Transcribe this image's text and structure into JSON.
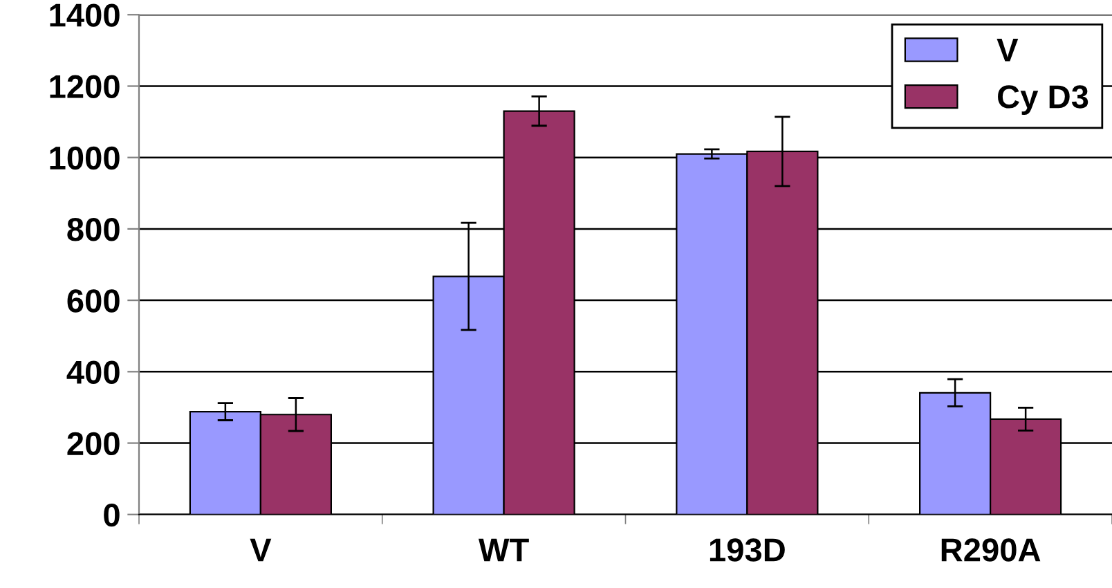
{
  "chart_data": {
    "type": "bar",
    "categories": [
      "V",
      "WT",
      "193D",
      "R290A"
    ],
    "series": [
      {
        "name": "V",
        "color": "#9999ff",
        "values": [
          288,
          667,
          1010,
          341
        ],
        "errors": [
          24,
          150,
          13,
          38
        ]
      },
      {
        "name": "Cy D3",
        "color": "#993366",
        "values": [
          280,
          1130,
          1017,
          267
        ],
        "errors": [
          46,
          41,
          97,
          32
        ]
      }
    ],
    "ylim": [
      0,
      1400
    ],
    "yticks": [
      0,
      200,
      400,
      600,
      800,
      1000,
      1200,
      1400
    ],
    "grid": "y",
    "legend": "top right"
  }
}
